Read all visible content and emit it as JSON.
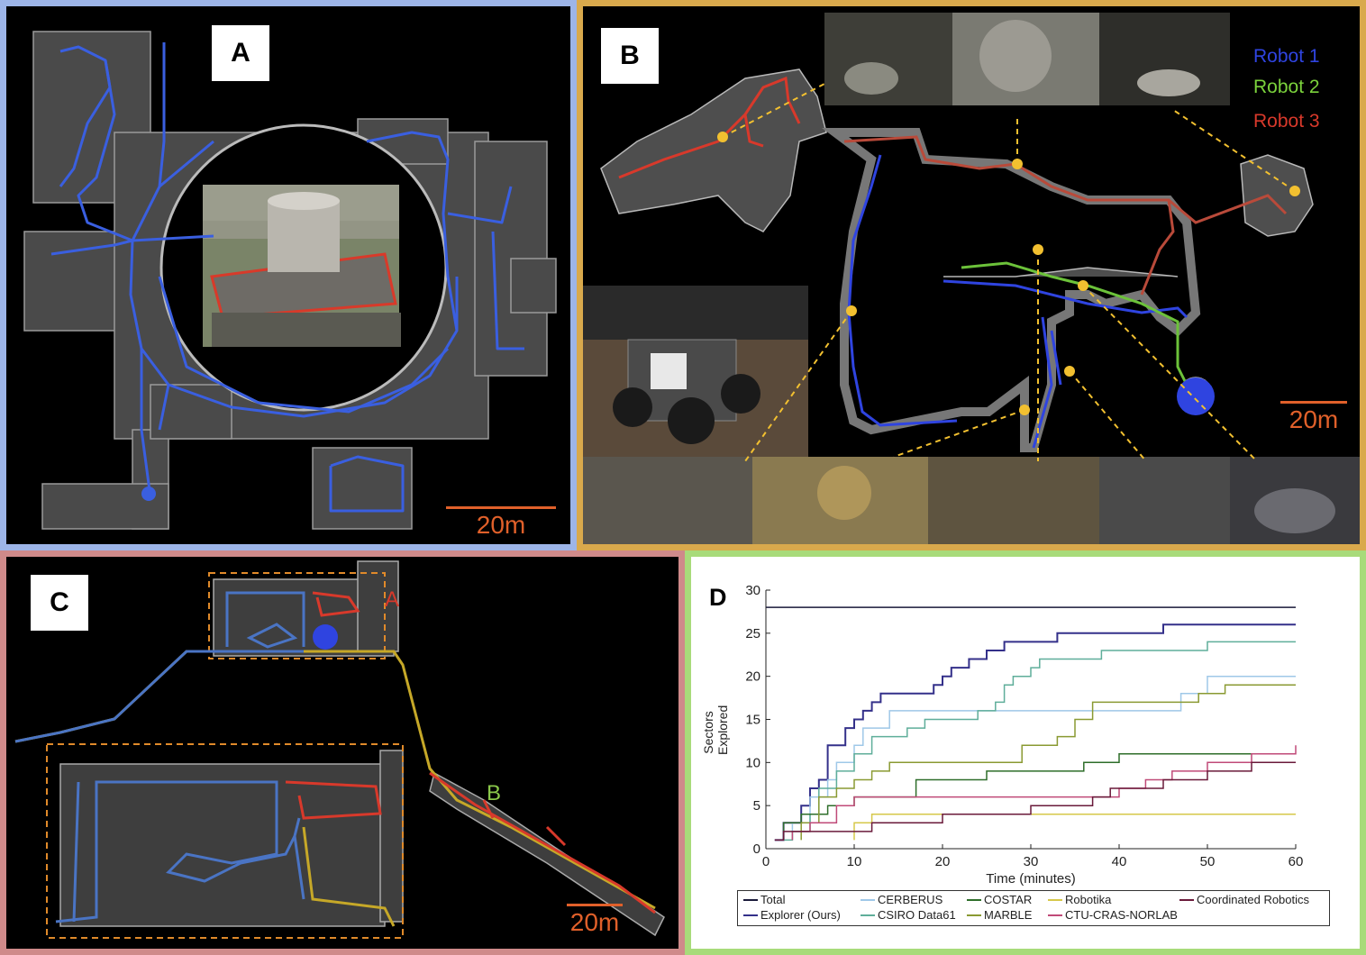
{
  "panels": {
    "a": {
      "label": "A",
      "scale": "20m"
    },
    "b": {
      "label": "B",
      "scale": "20m",
      "robots": [
        {
          "name": "Robot 1",
          "color": "#2f44e0"
        },
        {
          "name": "Robot 2",
          "color": "#7bd23c"
        },
        {
          "name": "Robot 3",
          "color": "#d8392b"
        }
      ]
    },
    "c": {
      "label": "C",
      "scale": "20m",
      "area_a": "A",
      "area_b": "B"
    },
    "d": {
      "label": "D"
    }
  },
  "colors": {
    "path_blue": "#3a5fe0",
    "scale_orange": "#e0602a",
    "dashed_orange": "#e08a2a",
    "yellow": "#f2c030"
  },
  "chart_data": {
    "type": "line",
    "title": "",
    "xlabel": "Time (minutes)",
    "ylabel": "Sectors Explored",
    "xlim": [
      0,
      60
    ],
    "ylim": [
      0,
      30
    ],
    "xticks": [
      0,
      10,
      20,
      30,
      40,
      50,
      60
    ],
    "yticks": [
      0,
      5,
      10,
      15,
      20,
      25,
      30
    ],
    "legend_position": "bottom",
    "series": [
      {
        "name": "Total",
        "color": "#1a1a3a",
        "points": [
          [
            0,
            28
          ],
          [
            60,
            28
          ]
        ]
      },
      {
        "name": "Explorer (Ours)",
        "color": "#34308a",
        "points": [
          [
            1,
            1
          ],
          [
            2,
            1
          ],
          [
            2,
            3
          ],
          [
            4,
            3
          ],
          [
            4,
            5
          ],
          [
            5,
            5
          ],
          [
            5,
            7
          ],
          [
            6,
            7
          ],
          [
            6,
            8
          ],
          [
            7,
            8
          ],
          [
            7,
            12
          ],
          [
            9,
            12
          ],
          [
            9,
            14
          ],
          [
            10,
            14
          ],
          [
            10,
            15
          ],
          [
            11,
            15
          ],
          [
            11,
            16
          ],
          [
            12,
            16
          ],
          [
            12,
            17
          ],
          [
            13,
            17
          ],
          [
            13,
            18
          ],
          [
            19,
            18
          ],
          [
            19,
            19
          ],
          [
            20,
            19
          ],
          [
            20,
            20
          ],
          [
            21,
            20
          ],
          [
            21,
            21
          ],
          [
            23,
            21
          ],
          [
            23,
            22
          ],
          [
            25,
            22
          ],
          [
            25,
            23
          ],
          [
            27,
            23
          ],
          [
            27,
            24
          ],
          [
            33,
            24
          ],
          [
            33,
            25
          ],
          [
            45,
            25
          ],
          [
            45,
            26
          ],
          [
            60,
            26
          ]
        ]
      },
      {
        "name": "CERBERUS",
        "color": "#9fc8e8",
        "points": [
          [
            3,
            1
          ],
          [
            3,
            3
          ],
          [
            5,
            3
          ],
          [
            5,
            6
          ],
          [
            7,
            6
          ],
          [
            7,
            8
          ],
          [
            8,
            8
          ],
          [
            8,
            10
          ],
          [
            10,
            10
          ],
          [
            10,
            12
          ],
          [
            11,
            12
          ],
          [
            11,
            14
          ],
          [
            14,
            14
          ],
          [
            14,
            16
          ],
          [
            47,
            16
          ],
          [
            47,
            18
          ],
          [
            50,
            18
          ],
          [
            50,
            20
          ],
          [
            60,
            20
          ]
        ]
      },
      {
        "name": "CSIRO Data61",
        "color": "#5fae9a",
        "points": [
          [
            2,
            1
          ],
          [
            3,
            1
          ],
          [
            3,
            2
          ],
          [
            5,
            2
          ],
          [
            5,
            4
          ],
          [
            6,
            4
          ],
          [
            6,
            7
          ],
          [
            8,
            7
          ],
          [
            8,
            9
          ],
          [
            10,
            9
          ],
          [
            10,
            11
          ],
          [
            12,
            11
          ],
          [
            12,
            13
          ],
          [
            16,
            13
          ],
          [
            16,
            14
          ],
          [
            18,
            14
          ],
          [
            18,
            15
          ],
          [
            24,
            15
          ],
          [
            24,
            16
          ],
          [
            26,
            16
          ],
          [
            26,
            17
          ],
          [
            27,
            17
          ],
          [
            27,
            19
          ],
          [
            28,
            19
          ],
          [
            28,
            20
          ],
          [
            30,
            20
          ],
          [
            30,
            21
          ],
          [
            31,
            21
          ],
          [
            31,
            22
          ],
          [
            38,
            22
          ],
          [
            38,
            23
          ],
          [
            50,
            23
          ],
          [
            50,
            24
          ],
          [
            60,
            24
          ]
        ]
      },
      {
        "name": "COSTAR",
        "color": "#2e6e2a",
        "points": [
          [
            2,
            1
          ],
          [
            2,
            3
          ],
          [
            4,
            3
          ],
          [
            4,
            4
          ],
          [
            7,
            4
          ],
          [
            7,
            5
          ],
          [
            10,
            5
          ],
          [
            10,
            6
          ],
          [
            17,
            6
          ],
          [
            17,
            8
          ],
          [
            25,
            8
          ],
          [
            25,
            9
          ],
          [
            36,
            9
          ],
          [
            36,
            10
          ],
          [
            40,
            10
          ],
          [
            40,
            11
          ],
          [
            60,
            11
          ]
        ]
      },
      {
        "name": "MARBLE",
        "color": "#8a9a32",
        "points": [
          [
            4,
            1
          ],
          [
            4,
            3
          ],
          [
            6,
            3
          ],
          [
            6,
            6
          ],
          [
            8,
            6
          ],
          [
            8,
            7
          ],
          [
            10,
            7
          ],
          [
            10,
            8
          ],
          [
            12,
            8
          ],
          [
            12,
            9
          ],
          [
            14,
            9
          ],
          [
            14,
            10
          ],
          [
            29,
            10
          ],
          [
            29,
            12
          ],
          [
            33,
            12
          ],
          [
            33,
            13
          ],
          [
            35,
            13
          ],
          [
            35,
            15
          ],
          [
            37,
            15
          ],
          [
            37,
            17
          ],
          [
            49,
            17
          ],
          [
            49,
            18
          ],
          [
            52,
            18
          ],
          [
            52,
            19
          ],
          [
            60,
            19
          ]
        ]
      },
      {
        "name": "Robotika",
        "color": "#d6c84a",
        "points": [
          [
            10,
            1
          ],
          [
            10,
            3
          ],
          [
            12,
            3
          ],
          [
            12,
            4
          ],
          [
            60,
            4
          ]
        ]
      },
      {
        "name": "CTU-CRAS-NORLAB",
        "color": "#c04a78",
        "points": [
          [
            3,
            1
          ],
          [
            3,
            2
          ],
          [
            5,
            2
          ],
          [
            5,
            3
          ],
          [
            8,
            3
          ],
          [
            8,
            5
          ],
          [
            10,
            5
          ],
          [
            10,
            6
          ],
          [
            40,
            6
          ],
          [
            40,
            7
          ],
          [
            43,
            7
          ],
          [
            43,
            8
          ],
          [
            46,
            8
          ],
          [
            46,
            9
          ],
          [
            50,
            9
          ],
          [
            50,
            10
          ],
          [
            55,
            10
          ],
          [
            55,
            11
          ],
          [
            60,
            11
          ],
          [
            60,
            12
          ]
        ]
      },
      {
        "name": "Coordinated Robotics",
        "color": "#6a1a3a",
        "points": [
          [
            1,
            1
          ],
          [
            2,
            1
          ],
          [
            2,
            2
          ],
          [
            12,
            2
          ],
          [
            12,
            3
          ],
          [
            20,
            3
          ],
          [
            20,
            4
          ],
          [
            30,
            4
          ],
          [
            30,
            5
          ],
          [
            37,
            5
          ],
          [
            37,
            6
          ],
          [
            39,
            6
          ],
          [
            39,
            7
          ],
          [
            45,
            7
          ],
          [
            45,
            8
          ],
          [
            50,
            8
          ],
          [
            50,
            9
          ],
          [
            55,
            9
          ],
          [
            55,
            10
          ],
          [
            60,
            10
          ]
        ]
      }
    ]
  }
}
